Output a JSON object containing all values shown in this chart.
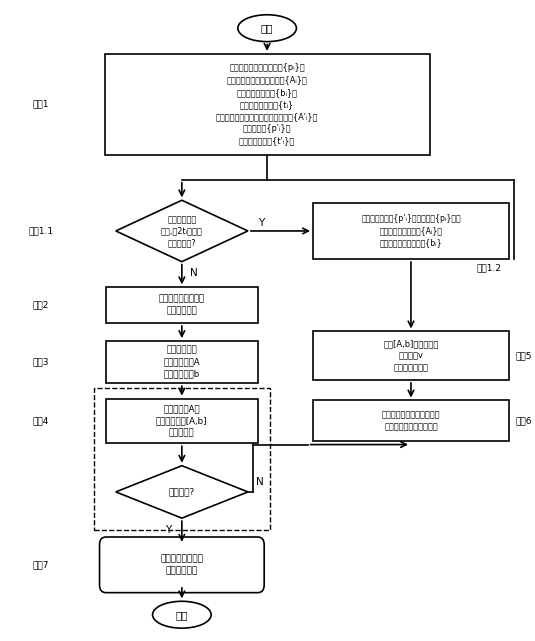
{
  "bg_color": "#ffffff",
  "fig_width": 5.35,
  "fig_height": 6.41,
  "font_size_main": 6.0,
  "font_size_label": 6.5,
  "font_size_yn": 7.0,
  "font_size_step": 6.5,
  "start_text": "开始",
  "end_text": "结束",
  "step1_text": "用基准段测点构造测点集{pᵢ}，\n并建立一部分特征行向量集{Aᵢ}、\n一部分边界元素集{bᵢ}、\n一部分状态元素集{tᵢ}\n用被测段测点构造被测特征行向量集{A'ᵢ}、\n被测测点集{p'ᵢ}，\n被测状态元素集{t'ᵢ}；",
  "diamond1_text": "未加入被测段\n测点,且2tᵢ满足最\n大实体要求?",
  "step12_text": "将该被测测点集{p'ᵢ}加入测点集{pᵢ}中，\n并扩充特征行向量集{Aᵢ}，\n扩充和更新边界元素集{bᵢ}",
  "step2_text": "加入一个新的关键点\n列关键点集中",
  "step3_text": "根据关键点集\n建立分析矩阵A\n和分析列向量b",
  "step5_text": "根据[A,b]计算测点的\n导优方向v\n（四参数形式）",
  "step4_text": "对分析矩阵A及\n增广分析矩阵[A,b]\n进行秩分析",
  "step6_text": "以迭及问题求新的关键点，\n更新被测圆柱测点的状态",
  "diamond2_text": "停止导优?",
  "step7_text": "计算零件几何误差\n并判断合格性",
  "label_step1": "步陹1",
  "label_step11": "步陹1.1",
  "label_step12": "步陹1.2",
  "label_step2": "步陹2",
  "label_step3": "步陹3",
  "label_step4": "步陹4",
  "label_step5": "步陹5",
  "label_step6": "步陹6",
  "label_step7": "步陹7",
  "Y_text": "Y",
  "N_text": "N"
}
